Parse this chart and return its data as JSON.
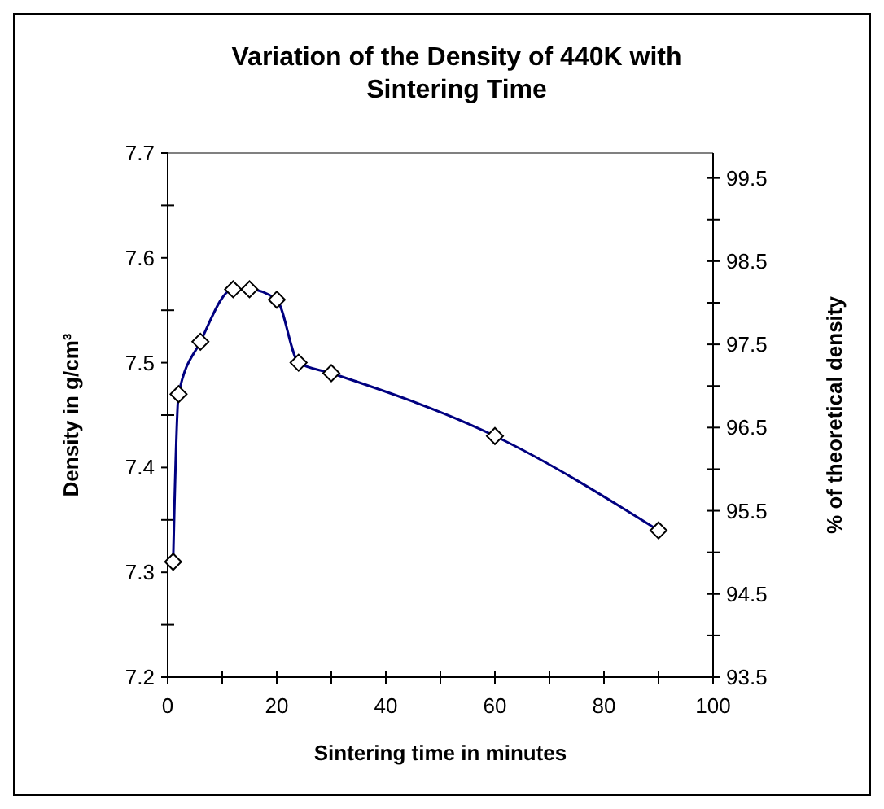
{
  "chart_data": {
    "type": "line",
    "title": "Variation of the Density of 440K with Sintering Time",
    "xlabel": "Sintering time in minutes",
    "ylabel": "Density in g/cm³",
    "y2label": "% of theoretical density",
    "x": [
      1,
      2,
      6,
      12,
      15,
      20,
      24,
      30,
      60,
      90
    ],
    "series": [
      {
        "color": "#000080",
        "values": [
          7.31,
          7.47,
          7.52,
          7.57,
          7.57,
          7.56,
          7.5,
          7.49,
          7.43,
          7.34
        ]
      }
    ],
    "xlim": [
      0,
      100
    ],
    "xticks": [
      0,
      {
        "value": 10,
        "label": null
      },
      20,
      {
        "value": 30,
        "label": null
      },
      40,
      {
        "value": 50,
        "label": null
      },
      60,
      {
        "value": 70,
        "label": null
      },
      80,
      {
        "value": 90,
        "label": null
      },
      100
    ],
    "ylim": [
      7.2,
      7.7
    ],
    "yticks": [
      7.2,
      {
        "value": 7.25,
        "label": null
      },
      7.3,
      {
        "value": 7.35,
        "label": null
      },
      7.4,
      {
        "value": 7.45,
        "label": null
      },
      7.5,
      {
        "value": 7.55,
        "label": null
      },
      7.6,
      {
        "value": 7.65,
        "label": null
      },
      7.7
    ],
    "y2lim": [
      93.5,
      99.8
    ],
    "y2ticks": [
      93.5,
      {
        "value": 94,
        "label": null
      },
      94.5,
      {
        "value": 95,
        "label": null
      },
      95.5,
      {
        "value": 96,
        "label": null
      },
      96.5,
      {
        "value": 97,
        "label": null
      },
      97.5,
      {
        "value": 98,
        "label": null
      },
      98.5,
      {
        "value": 99,
        "label": null
      },
      99.5
    ],
    "marker": "diamond",
    "line_style": "solid",
    "grid": false
  }
}
